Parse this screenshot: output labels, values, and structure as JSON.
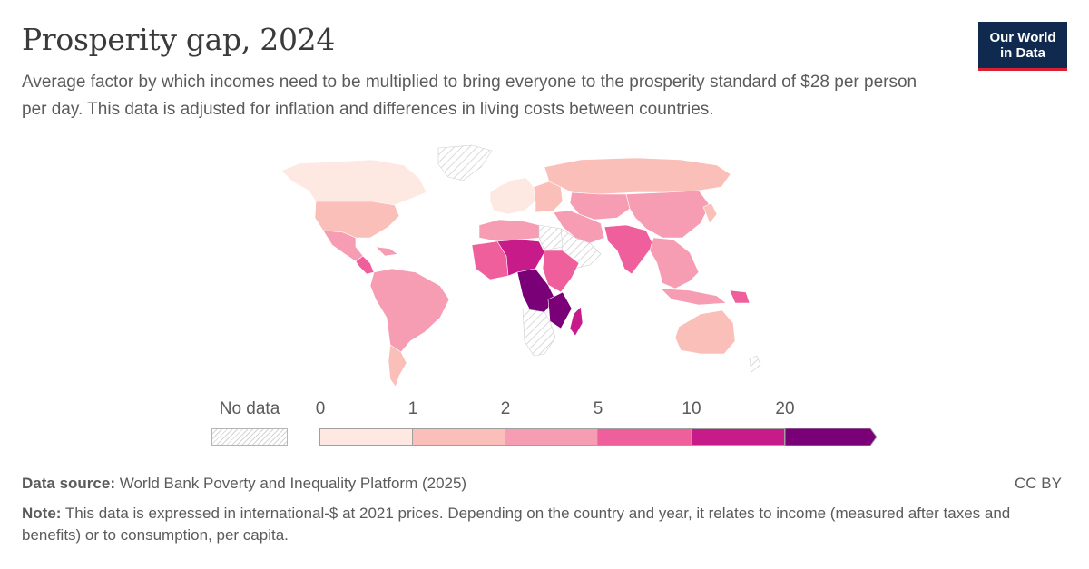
{
  "header": {
    "title": "Prosperity gap, 2024",
    "subtitle": "Average factor by which incomes need to be multiplied to bring everyone to the prosperity standard of $28 per person per day. This data is adjusted for inflation and differences in living costs between countries."
  },
  "logo": {
    "line1": "Our World",
    "line2": "in Data"
  },
  "colors": {
    "bin_0_1": "#fde9e2",
    "bin_1_2": "#fbbfb9",
    "bin_2_5": "#f69cb3",
    "bin_5_10": "#ef5f9c",
    "bin_10_20": "#c81b8a",
    "bin_20_plus": "#7a0078",
    "no_data_hatch": "#d3d3d3",
    "border": "#ffffff"
  },
  "legend": {
    "no_data_label": "No data",
    "ticks": [
      "0",
      "1",
      "2",
      "5",
      "10",
      "20"
    ]
  },
  "map_data": {
    "type": "choropleth",
    "regions": [
      {
        "region": "Canada",
        "bin": "0-1"
      },
      {
        "region": "Greenland",
        "bin": "no-data"
      },
      {
        "region": "United States",
        "bin": "1-2"
      },
      {
        "region": "Mexico",
        "bin": "2-5"
      },
      {
        "region": "Central America",
        "bin": "5-10"
      },
      {
        "region": "South America",
        "bin": "2-5"
      },
      {
        "region": "Chile / Argentina south",
        "bin": "1-2"
      },
      {
        "region": "Western Europe",
        "bin": "0-1"
      },
      {
        "region": "Eastern Europe",
        "bin": "1-2"
      },
      {
        "region": "Russia",
        "bin": "1-2"
      },
      {
        "region": "Central Asia",
        "bin": "2-5"
      },
      {
        "region": "China",
        "bin": "2-5"
      },
      {
        "region": "India",
        "bin": "5-10"
      },
      {
        "region": "Middle East",
        "bin": "2-5"
      },
      {
        "region": "Arabian Peninsula",
        "bin": "no-data"
      },
      {
        "region": "North Africa",
        "bin": "2-5"
      },
      {
        "region": "Libya",
        "bin": "no-data"
      },
      {
        "region": "West Africa",
        "bin": "5-10"
      },
      {
        "region": "Sahel",
        "bin": "10-20"
      },
      {
        "region": "East Africa",
        "bin": "5-10"
      },
      {
        "region": "DR Congo",
        "bin": "20+"
      },
      {
        "region": "Mozambique / Malawi",
        "bin": "20+"
      },
      {
        "region": "Madagascar",
        "bin": "10-20"
      },
      {
        "region": "Southern Africa",
        "bin": "no-data"
      },
      {
        "region": "Southeast Asia",
        "bin": "2-5"
      },
      {
        "region": "Australia",
        "bin": "1-2"
      },
      {
        "region": "Japan / Korea",
        "bin": "1-2"
      }
    ]
  },
  "footer": {
    "source_label": "Data source:",
    "source_text": "World Bank Poverty and Inequality Platform (2025)",
    "license": "CC BY",
    "note_label": "Note:",
    "note_text": "This data is expressed in international-$ at 2021 prices. Depending on the country and year, it relates to income (measured after taxes and benefits) or to consumption, per capita."
  }
}
